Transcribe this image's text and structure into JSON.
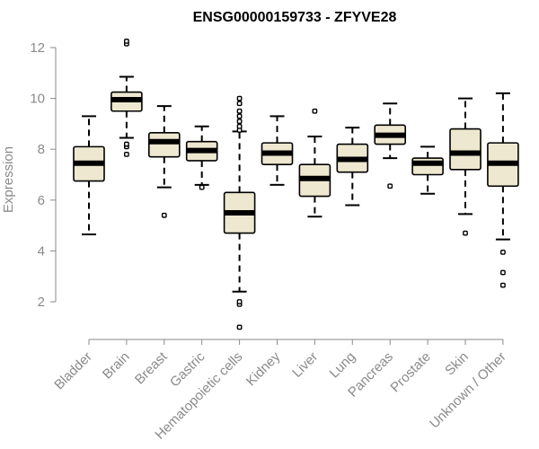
{
  "chart_data": {
    "type": "box",
    "title": "ENSG00000159733 - ZFYVE28",
    "xlabel": "",
    "ylabel": "Expression",
    "ylim": [
      0.8,
      12.6
    ],
    "yticks": [
      2,
      4,
      6,
      8,
      10,
      12
    ],
    "grid": false,
    "colors": {
      "box_fill": "#efe8d0",
      "box_stroke": "#000000",
      "axis": "#8a8a8a",
      "tick_text": "#8a8a8a"
    },
    "categories": [
      "Bladder",
      "Brain",
      "Breast",
      "Gastric",
      "Hematopoietic cells",
      "Kidney",
      "Liver",
      "Lung",
      "Pancreas",
      "Prostate",
      "Skin",
      "Unknown / Other"
    ],
    "boxes": [
      {
        "category": "Bladder",
        "whisker_low": 4.65,
        "q1": 6.75,
        "median": 7.45,
        "q3": 8.1,
        "whisker_high": 9.3,
        "outliers": []
      },
      {
        "category": "Brain",
        "whisker_low": 8.45,
        "q1": 9.5,
        "median": 9.95,
        "q3": 10.25,
        "whisker_high": 10.85,
        "outliers": [
          7.8,
          8.1,
          8.2,
          12.15,
          12.25
        ]
      },
      {
        "category": "Breast",
        "whisker_low": 6.5,
        "q1": 7.7,
        "median": 8.3,
        "q3": 8.65,
        "whisker_high": 9.7,
        "outliers": [
          5.4
        ]
      },
      {
        "category": "Gastric",
        "whisker_low": 6.6,
        "q1": 7.55,
        "median": 7.95,
        "q3": 8.3,
        "whisker_high": 8.9,
        "outliers": [
          6.5
        ]
      },
      {
        "category": "Hematopoietic cells",
        "whisker_low": 2.4,
        "q1": 4.7,
        "median": 5.5,
        "q3": 6.3,
        "whisker_high": 8.7,
        "outliers": [
          1.0,
          1.9,
          2.0,
          8.75,
          8.9,
          9.1,
          9.3,
          9.5,
          9.8,
          10.0
        ]
      },
      {
        "category": "Kidney",
        "whisker_low": 6.6,
        "q1": 7.4,
        "median": 7.85,
        "q3": 8.25,
        "whisker_high": 9.3,
        "outliers": []
      },
      {
        "category": "Liver",
        "whisker_low": 5.35,
        "q1": 6.15,
        "median": 6.85,
        "q3": 7.4,
        "whisker_high": 8.5,
        "outliers": [
          9.5
        ]
      },
      {
        "category": "Lung",
        "whisker_low": 5.8,
        "q1": 7.1,
        "median": 7.6,
        "q3": 8.2,
        "whisker_high": 8.85,
        "outliers": []
      },
      {
        "category": "Pancreas",
        "whisker_low": 7.65,
        "q1": 8.2,
        "median": 8.55,
        "q3": 8.95,
        "whisker_high": 9.8,
        "outliers": [
          6.55
        ]
      },
      {
        "category": "Prostate",
        "whisker_low": 6.25,
        "q1": 7.0,
        "median": 7.45,
        "q3": 7.65,
        "whisker_high": 8.1,
        "outliers": []
      },
      {
        "category": "Skin",
        "whisker_low": 5.45,
        "q1": 7.2,
        "median": 7.85,
        "q3": 8.8,
        "whisker_high": 10.0,
        "outliers": [
          4.7
        ]
      },
      {
        "category": "Unknown / Other",
        "whisker_low": 4.45,
        "q1": 6.55,
        "median": 7.45,
        "q3": 8.25,
        "whisker_high": 10.2,
        "outliers": [
          2.65,
          3.15,
          3.95
        ]
      }
    ]
  }
}
